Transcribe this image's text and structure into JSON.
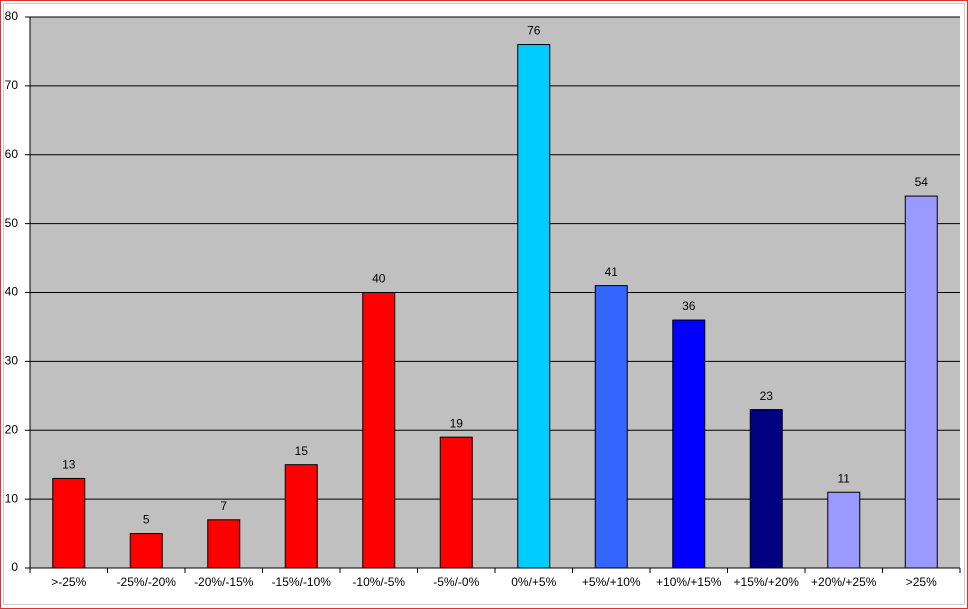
{
  "chart_data": {
    "type": "bar",
    "categories": [
      ">-25%",
      "-25%/-20%",
      "-20%/-15%",
      "-15%/-10%",
      "-10%/-5%",
      "-5%/-0%",
      "0%/+5%",
      "+5%/+10%",
      "+10%/+15%",
      "+15%/+20%",
      "+20%/+25%",
      ">25%"
    ],
    "values": [
      13,
      5,
      7,
      15,
      40,
      19,
      76,
      41,
      36,
      23,
      11,
      54
    ],
    "colors": [
      "#ff0000",
      "#ff0000",
      "#ff0000",
      "#ff0000",
      "#ff0000",
      "#ff0000",
      "#00ccff",
      "#3366ff",
      "#0000ff",
      "#000080",
      "#9999ff",
      "#9999ff"
    ],
    "ylim": [
      0,
      80
    ],
    "yticks": [
      0,
      10,
      20,
      30,
      40,
      50,
      60,
      70,
      80
    ],
    "grid": true
  }
}
